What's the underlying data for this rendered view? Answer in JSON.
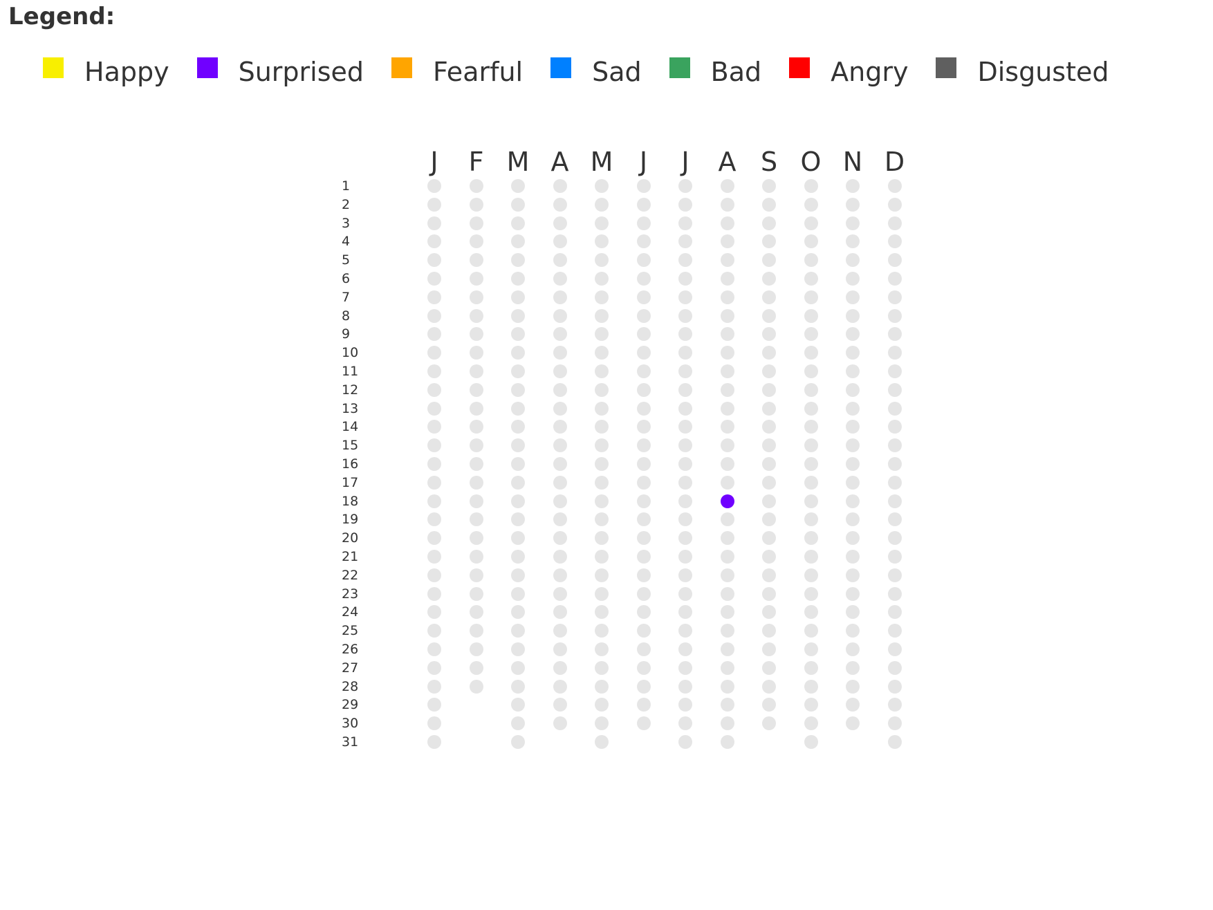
{
  "legend": {
    "title": "Legend:",
    "items": [
      {
        "label": "Happy",
        "color": "#f8ef00",
        "icon": "happy-swatch"
      },
      {
        "label": "Surprised",
        "color": "#7000ff",
        "icon": "surprised-swatch"
      },
      {
        "label": "Fearful",
        "color": "#ffa500",
        "icon": "fearful-swatch"
      },
      {
        "label": "Sad",
        "color": "#0080ff",
        "icon": "sad-swatch"
      },
      {
        "label": "Bad",
        "color": "#3aa35e",
        "icon": "bad-swatch"
      },
      {
        "label": "Angry",
        "color": "#ff0000",
        "icon": "angry-swatch"
      },
      {
        "label": "Disgusted",
        "color": "#5f5f5f",
        "icon": "disgusted-swatch"
      }
    ]
  },
  "calendar": {
    "months": [
      {
        "label": "J",
        "days": 31
      },
      {
        "label": "F",
        "days": 28
      },
      {
        "label": "M",
        "days": 31
      },
      {
        "label": "A",
        "days": 30
      },
      {
        "label": "M",
        "days": 31
      },
      {
        "label": "J",
        "days": 30
      },
      {
        "label": "J",
        "days": 31
      },
      {
        "label": "A",
        "days": 31
      },
      {
        "label": "S",
        "days": 30
      },
      {
        "label": "O",
        "days": 31
      },
      {
        "label": "N",
        "days": 30
      },
      {
        "label": "D",
        "days": 31
      }
    ],
    "day_labels": [
      "1",
      "2",
      "3",
      "4",
      "5",
      "6",
      "7",
      "8",
      "9",
      "10",
      "11",
      "12",
      "13",
      "14",
      "15",
      "16",
      "17",
      "18",
      "19",
      "20",
      "21",
      "22",
      "23",
      "24",
      "25",
      "26",
      "27",
      "28",
      "29",
      "30",
      "31"
    ],
    "empty_color": "#e5e5e5",
    "entries": [
      {
        "month": 8,
        "day": 18,
        "mood": "Surprised",
        "color": "#7000ff"
      }
    ]
  }
}
